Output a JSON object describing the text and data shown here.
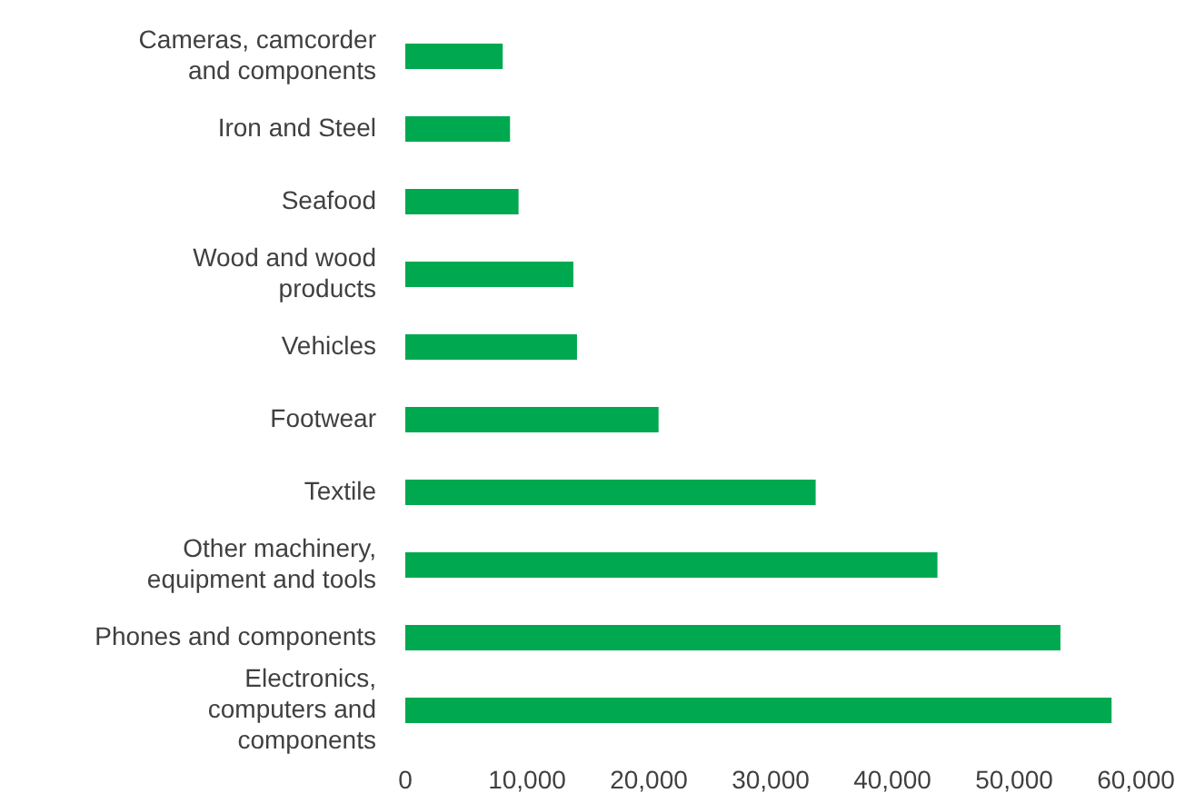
{
  "chart_data": {
    "type": "bar",
    "orientation": "horizontal",
    "categories": [
      "Cameras, camcorder and components",
      "Iron and Steel",
      "Seafood",
      "Wood and wood products",
      "Vehicles",
      "Footwear",
      "Textile",
      "Other machinery, equipment and tools",
      "Phones and components",
      "Electronics, computers and components"
    ],
    "values": [
      8000,
      8600,
      9300,
      13800,
      14100,
      20800,
      33700,
      43700,
      53800,
      58000
    ],
    "color": "#00a94f",
    "xlim": [
      0,
      60000
    ],
    "xticks": [
      {
        "value": 0,
        "label": "0"
      },
      {
        "value": 10000,
        "label": "10,000"
      },
      {
        "value": 20000,
        "label": "20,000"
      },
      {
        "value": 30000,
        "label": "30,000"
      },
      {
        "value": 40000,
        "label": "40,000"
      },
      {
        "value": 50000,
        "label": "50,000"
      },
      {
        "value": 60000,
        "label": "60,000"
      }
    ],
    "grid": false
  }
}
